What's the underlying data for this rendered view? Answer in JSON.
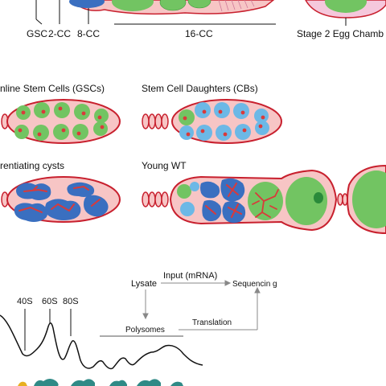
{
  "top_labels": {
    "gsc": "GSC",
    "two_cc": "2-CC",
    "eight_cc": "8-CC",
    "sixteen_cc": "16-CC",
    "stage2": "Stage 2 Egg Chamb"
  },
  "panels": {
    "gscs": "nline Stem Cells (GSCs)",
    "cbs": "Stem Cell Daughters (CBs)",
    "cysts": "rentiating cysts",
    "young_wt": "Young WT"
  },
  "flow": {
    "lysate": "Lysate",
    "input": "Input (mRNA)",
    "sequencing": "Sequencin g",
    "polysomes": "Polysomes",
    "translation": "Translation"
  },
  "profile": {
    "peak_40s": "40S",
    "peak_60s": "60S",
    "peak_80s": "80S"
  },
  "colors": {
    "outline": "#c8202e",
    "sheath": "#f7c5c5",
    "gsc_green": "#72c462",
    "cb_blue": "#6cb8e6",
    "cyst_blue": "#3a6fc0",
    "fusome_red": "#d93a3a",
    "oocyte_green": "#2a8a3a",
    "egg_fill": "#f5c8dc",
    "teal": "#2f8a86",
    "yellow": "#e8b020"
  }
}
